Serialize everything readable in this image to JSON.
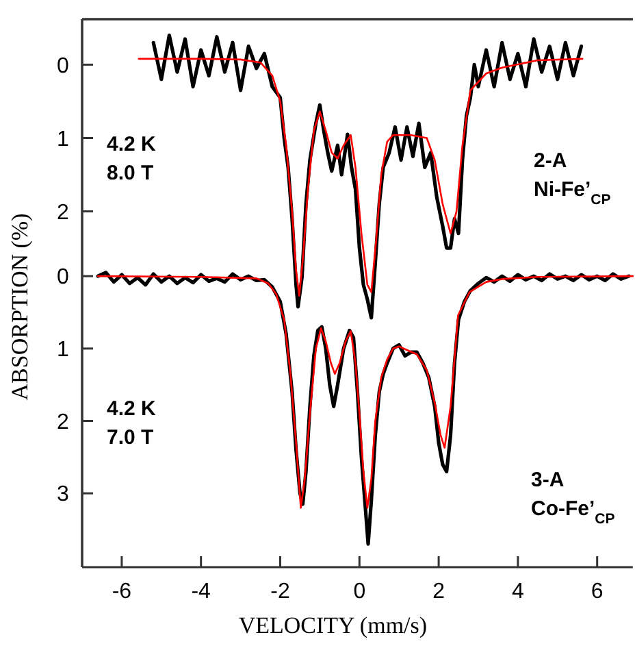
{
  "chart_data": [
    {
      "type": "line",
      "xlim": [
        -7,
        6.9
      ],
      "ylim": [
        6.85,
        -0.62
      ],
      "yticks": [
        0,
        1,
        2
      ],
      "tick_labels": "y",
      "annotations": [
        "4.2 K\n8.0 T",
        "2-A\nNi-Fe’$_{CP}$"
      ],
      "series": [
        {
          "color": "#000000",
          "x": [
            -5.2,
            -5.0,
            -4.8,
            -4.6,
            -4.4,
            -4.2,
            -4.0,
            -3.8,
            -3.6,
            -3.4,
            -3.2,
            -3.0,
            -2.8,
            -2.6,
            -2.4,
            -2.2,
            -2.0,
            -1.9,
            -1.8,
            -1.7,
            -1.6,
            -1.55,
            -1.45,
            -1.35,
            -1.25,
            -1.1,
            -1.0,
            -0.9,
            -0.8,
            -0.7,
            -0.55,
            -0.45,
            -0.3,
            -0.2,
            -0.1,
            0.0,
            0.1,
            0.2,
            0.3,
            0.4,
            0.5,
            0.6,
            0.75,
            0.9,
            1.05,
            1.2,
            1.35,
            1.5,
            1.65,
            1.8,
            1.95,
            2.1,
            2.2,
            2.3,
            2.4,
            2.5,
            2.6,
            2.7,
            2.8,
            2.9,
            3.0,
            3.2,
            3.4,
            3.6,
            3.8,
            4.0,
            4.2,
            4.4,
            4.6,
            4.8,
            5.0,
            5.2,
            5.4,
            5.6
          ],
          "values": [
            -0.3,
            0.2,
            -0.4,
            0.1,
            -0.35,
            0.3,
            -0.2,
            0.15,
            -0.38,
            0.1,
            -0.3,
            0.35,
            -0.25,
            0.05,
            -0.15,
            0.3,
            0.45,
            1.0,
            1.4,
            2.1,
            3.0,
            3.3,
            2.9,
            1.9,
            1.3,
            0.8,
            0.55,
            0.9,
            1.2,
            1.45,
            1.1,
            1.5,
            0.95,
            1.4,
            1.7,
            2.5,
            3.0,
            3.2,
            3.45,
            2.7,
            1.9,
            1.4,
            1.2,
            0.85,
            1.3,
            0.85,
            1.25,
            0.8,
            1.4,
            1.2,
            1.8,
            2.2,
            2.5,
            2.5,
            2.1,
            2.3,
            1.3,
            0.7,
            0.45,
            0.0,
            0.3,
            -0.2,
            0.3,
            -0.3,
            0.2,
            -0.15,
            0.3,
            -0.35,
            0.1,
            -0.25,
            0.2,
            -0.3,
            0.15,
            -0.25
          ]
        },
        {
          "color": "#ff0000",
          "x": [
            -5.57,
            -4,
            -3,
            -2.5,
            -2.2,
            -2.0,
            -1.85,
            -1.7,
            -1.6,
            -1.52,
            -1.42,
            -1.3,
            -1.15,
            -1.0,
            -0.85,
            -0.7,
            -0.55,
            -0.4,
            -0.22,
            -0.1,
            0.05,
            0.2,
            0.3,
            0.42,
            0.55,
            0.7,
            0.85,
            1.3,
            1.7,
            1.9,
            2.1,
            2.3,
            2.45,
            2.6,
            2.8,
            3.2,
            3.6,
            4.5,
            5.63
          ],
          "values": [
            -0.08,
            -0.08,
            -0.07,
            -0.03,
            0.15,
            0.5,
            1.1,
            2.0,
            2.8,
            3.15,
            2.6,
            1.7,
            0.9,
            0.64,
            0.9,
            1.2,
            1.28,
            1.1,
            0.96,
            1.4,
            2.3,
            3.0,
            3.1,
            2.4,
            1.5,
            1.05,
            0.96,
            0.96,
            1.0,
            1.3,
            1.9,
            2.3,
            2.0,
            1.1,
            0.35,
            0.12,
            0.04,
            -0.06,
            -0.08
          ]
        }
      ]
    },
    {
      "type": "line",
      "xlabel": "VELOCITY (mm/s)",
      "ylabel": "ABSORPTION (%)",
      "xlim": [
        -7,
        6.9
      ],
      "xticks": [
        -6,
        -4,
        -2,
        0,
        2,
        4,
        6
      ],
      "ylim": [
        4.02,
        -3.55
      ],
      "yticks": [
        0,
        1,
        2,
        3
      ],
      "annotations": [
        "4.2 K\n7.0 T",
        "3-A\nCo-Fe’$_{CP}$"
      ],
      "series": [
        {
          "color": "#000000",
          "x": [
            -6.6,
            -6.4,
            -6.2,
            -6.0,
            -5.8,
            -5.6,
            -5.4,
            -5.2,
            -5.0,
            -4.8,
            -4.6,
            -4.4,
            -4.2,
            -4.0,
            -3.8,
            -3.6,
            -3.4,
            -3.2,
            -3.0,
            -2.8,
            -2.6,
            -2.4,
            -2.2,
            -2.0,
            -1.85,
            -1.7,
            -1.6,
            -1.5,
            -1.43,
            -1.35,
            -1.25,
            -1.15,
            -1.05,
            -0.95,
            -0.85,
            -0.75,
            -0.65,
            -0.55,
            -0.4,
            -0.25,
            -0.15,
            -0.05,
            0.05,
            0.15,
            0.22,
            0.3,
            0.4,
            0.5,
            0.6,
            0.7,
            0.85,
            1.0,
            1.15,
            1.3,
            1.45,
            1.6,
            1.75,
            1.9,
            2.0,
            2.1,
            2.2,
            2.3,
            2.4,
            2.5,
            2.65,
            2.8,
            3.0,
            3.2,
            3.4,
            3.6,
            3.8,
            4.0,
            4.2,
            4.4,
            4.6,
            4.8,
            5.0,
            5.2,
            5.4,
            5.6,
            5.8,
            6.0,
            6.2,
            6.4,
            6.6,
            6.8
          ],
          "values": [
            0.0,
            -0.05,
            0.08,
            -0.02,
            0.1,
            0.02,
            0.12,
            -0.03,
            0.08,
            0.0,
            0.1,
            0.02,
            0.09,
            -0.02,
            0.07,
            0.03,
            0.08,
            -0.03,
            0.05,
            0.0,
            0.06,
            0.05,
            0.15,
            0.35,
            0.8,
            1.6,
            2.4,
            3.0,
            3.15,
            2.7,
            1.8,
            1.1,
            0.75,
            0.7,
            1.0,
            1.5,
            1.8,
            1.5,
            1.0,
            0.75,
            0.85,
            1.6,
            2.5,
            3.2,
            3.7,
            3.1,
            2.2,
            1.6,
            1.35,
            1.2,
            1.0,
            0.95,
            1.1,
            1.05,
            1.05,
            1.2,
            1.4,
            1.8,
            2.3,
            2.6,
            2.7,
            2.2,
            1.2,
            0.6,
            0.35,
            0.2,
            0.1,
            0.02,
            0.08,
            0.0,
            0.07,
            -0.02,
            0.05,
            0.0,
            0.06,
            -0.03,
            0.04,
            0.0,
            0.06,
            -0.02,
            0.05,
            0.0,
            0.06,
            -0.03,
            0.04,
            0.0
          ]
        },
        {
          "color": "#ff0000",
          "x": [
            -6.6,
            -4,
            -2.6,
            -2.3,
            -2.1,
            -1.9,
            -1.75,
            -1.6,
            -1.48,
            -1.38,
            -1.25,
            -1.1,
            -0.97,
            -0.85,
            -0.72,
            -0.62,
            -0.5,
            -0.35,
            -0.22,
            -0.1,
            0.0,
            0.1,
            0.2,
            0.3,
            0.4,
            0.55,
            0.7,
            0.85,
            1.0,
            1.2,
            1.45,
            1.7,
            1.9,
            2.05,
            2.15,
            2.3,
            2.49,
            2.78,
            3.2,
            3.6,
            4.5,
            6.9
          ],
          "values": [
            0.0,
            0.01,
            0.03,
            0.1,
            0.25,
            0.6,
            1.3,
            2.3,
            3.2,
            2.8,
            1.9,
            1.0,
            0.72,
            0.9,
            1.2,
            1.35,
            1.2,
            0.9,
            0.76,
            1.2,
            1.9,
            2.7,
            3.2,
            2.8,
            2.0,
            1.4,
            1.15,
            1.0,
            0.97,
            1.02,
            1.08,
            1.3,
            1.75,
            2.2,
            2.37,
            1.8,
            0.54,
            0.22,
            0.08,
            0.04,
            0.01,
            0.0
          ]
        }
      ]
    }
  ]
}
